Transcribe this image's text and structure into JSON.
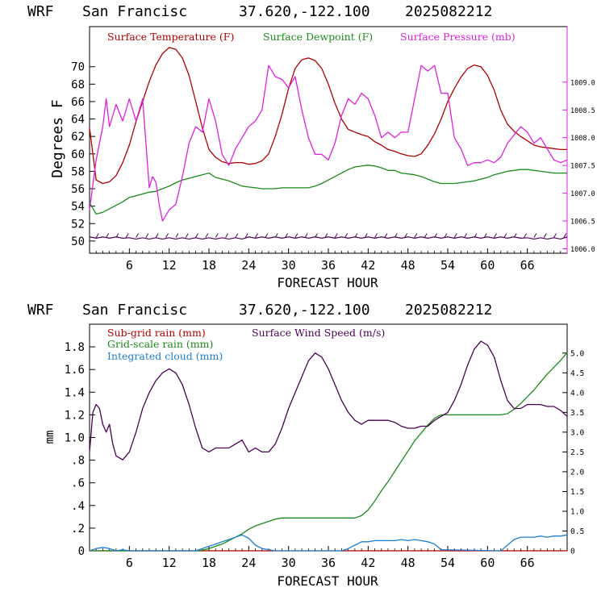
{
  "chart_data": [
    {
      "type": "line",
      "header": {
        "model": "WRF",
        "site": "San Francisc",
        "coords": "37.620,-122.100",
        "run": "2025082212"
      },
      "xlabel": "FORECAST HOUR",
      "ylabel": "Degrees F",
      "xlim": [
        0,
        72
      ],
      "xticks": [
        "6",
        "12",
        "18",
        "24",
        "30",
        "36",
        "42",
        "48",
        "54",
        "60",
        "66"
      ],
      "xtick_values": [
        6,
        12,
        18,
        24,
        30,
        36,
        42,
        48,
        54,
        60,
        66
      ],
      "ylim": [
        48.6,
        74.6
      ],
      "yticks": [
        "50",
        "52",
        "54",
        "56",
        "58",
        "60",
        "62",
        "64",
        "66",
        "68",
        "70"
      ],
      "ytick_values": [
        50,
        52,
        54,
        56,
        58,
        60,
        62,
        64,
        66,
        68,
        70
      ],
      "y2lim": [
        1005.92,
        1010.0
      ],
      "y2ticks": [
        "1006.0",
        "1006.5",
        "1007.0",
        "1007.5",
        "1008.0",
        "1008.5",
        "1009.0"
      ],
      "y2tick_values": [
        1006.0,
        1006.5,
        1007.0,
        1007.5,
        1008.0,
        1008.5,
        1009.0
      ],
      "series": [
        {
          "name": "Surface Temperature (F)",
          "color": "#b00000",
          "axis": "left",
          "x": [
            0,
            1,
            2,
            3,
            4,
            5,
            6,
            7,
            8,
            9,
            10,
            11,
            12,
            13,
            14,
            15,
            16,
            17,
            18,
            19,
            20,
            21,
            22,
            23,
            24,
            25,
            26,
            27,
            28,
            29,
            30,
            31,
            32,
            33,
            34,
            35,
            36,
            37,
            38,
            39,
            40,
            41,
            42,
            43,
            44,
            45,
            46,
            47,
            48,
            49,
            50,
            51,
            52,
            53,
            54,
            55,
            56,
            57,
            58,
            59,
            60,
            61,
            62,
            63,
            64,
            65,
            66,
            67,
            68,
            69,
            70,
            71,
            72
          ],
          "values": [
            63,
            57,
            56.6,
            56.8,
            57.5,
            59,
            61,
            63.7,
            66,
            68.3,
            70.2,
            71.5,
            72.2,
            72,
            71,
            69,
            66,
            63,
            60.5,
            59.6,
            59.1,
            58.9,
            59,
            59,
            58.8,
            58.9,
            59.2,
            60,
            62,
            64.5,
            67.5,
            69.8,
            70.8,
            71,
            70.7,
            69.8,
            68,
            65.8,
            64,
            62.8,
            62.5,
            62.2,
            62,
            61.4,
            61,
            60.5,
            60.3,
            60,
            59.8,
            59.7,
            60,
            61,
            62.3,
            64,
            66,
            67.5,
            68.8,
            69.8,
            70.2,
            70,
            69,
            67.3,
            65,
            63.4,
            62.6,
            62,
            61.5,
            61,
            60.8,
            60.7,
            60.6,
            60.5,
            60.5
          ]
        },
        {
          "name": "Surface Dewpoint (F)",
          "color": "#1a8a1a",
          "axis": "left",
          "x": [
            0,
            1,
            2,
            3,
            4,
            5,
            6,
            7,
            8,
            9,
            10,
            11,
            12,
            13,
            14,
            15,
            16,
            17,
            18,
            19,
            20,
            21,
            22,
            23,
            24,
            25,
            26,
            27,
            28,
            29,
            30,
            31,
            32,
            33,
            34,
            35,
            36,
            37,
            38,
            39,
            40,
            41,
            42,
            43,
            44,
            45,
            46,
            47,
            48,
            49,
            50,
            51,
            52,
            53,
            54,
            55,
            56,
            57,
            58,
            59,
            60,
            61,
            62,
            63,
            64,
            65,
            66,
            67,
            68,
            69,
            70,
            71,
            72
          ],
          "values": [
            54.4,
            53.1,
            53.3,
            53.7,
            54.1,
            54.5,
            55,
            55.2,
            55.4,
            55.6,
            55.7,
            56,
            56.3,
            56.7,
            57,
            57.2,
            57.4,
            57.6,
            57.8,
            57.3,
            57.1,
            56.9,
            56.6,
            56.3,
            56.2,
            56.1,
            56,
            56,
            56,
            56.1,
            56.1,
            56.1,
            56.1,
            56.1,
            56.3,
            56.6,
            57,
            57.4,
            57.8,
            58.2,
            58.5,
            58.6,
            58.7,
            58.6,
            58.4,
            58.1,
            58.1,
            57.8,
            57.7,
            57.6,
            57.4,
            57.1,
            56.8,
            56.6,
            56.6,
            56.6,
            56.7,
            56.8,
            56.9,
            57.1,
            57.3,
            57.6,
            57.8,
            58,
            58.1,
            58.2,
            58.2,
            58.1,
            58,
            57.9,
            57.8,
            57.8,
            57.8
          ]
        },
        {
          "name": "Surface Pressure (mb)",
          "color": "#e020e0",
          "axis": "right",
          "x": [
            0,
            1,
            2,
            2.5,
            3,
            4,
            5,
            6,
            7,
            8,
            8.5,
            9,
            9.5,
            10,
            10.5,
            11,
            12,
            13,
            14,
            15,
            16,
            17,
            18,
            19,
            20,
            21,
            22,
            23,
            24,
            25,
            26,
            27,
            28,
            29,
            30,
            31,
            32,
            33,
            34,
            35,
            36,
            37,
            38,
            39,
            40,
            41,
            42,
            43,
            44,
            45,
            46,
            47,
            48,
            49,
            50,
            51,
            52,
            53,
            54,
            55,
            56,
            57,
            58,
            59,
            60,
            61,
            62,
            63,
            64,
            65,
            66,
            67,
            68,
            69,
            70,
            71,
            72
          ],
          "values": [
            1006.7,
            1007.6,
            1008.2,
            1008.7,
            1008.2,
            1008.6,
            1008.3,
            1008.7,
            1008.3,
            1008.7,
            1007.9,
            1007.1,
            1007.3,
            1007.2,
            1006.8,
            1006.5,
            1006.7,
            1006.8,
            1007.3,
            1007.9,
            1008.2,
            1008.1,
            1008.7,
            1008.3,
            1007.7,
            1007.5,
            1007.8,
            1008.0,
            1008.2,
            1008.3,
            1008.5,
            1009.3,
            1009.1,
            1009.05,
            1008.9,
            1009.1,
            1008.5,
            1008.0,
            1007.7,
            1007.7,
            1007.6,
            1007.9,
            1008.4,
            1008.7,
            1008.6,
            1008.8,
            1008.7,
            1008.4,
            1008.0,
            1008.1,
            1008.0,
            1008.1,
            1008.1,
            1008.7,
            1009.3,
            1009.2,
            1009.3,
            1008.8,
            1008.8,
            1008.0,
            1007.8,
            1007.5,
            1007.55,
            1007.55,
            1007.6,
            1007.55,
            1007.65,
            1007.9,
            1008.05,
            1008.2,
            1008.1,
            1007.9,
            1008.0,
            1007.8,
            1007.6,
            1007.55,
            1007.6
          ]
        },
        {
          "name": "",
          "color": "#4b0055",
          "axis": "left",
          "marker": "wind-barb",
          "x": [
            0,
            6,
            12,
            18,
            24,
            30,
            36,
            42,
            48,
            54,
            60,
            66,
            72
          ],
          "values": [
            50.4,
            50.3,
            50.3,
            50.3,
            50.4,
            50.4,
            50.4,
            50.4,
            50.4,
            50.4,
            50.4,
            50.3,
            50.4
          ]
        }
      ]
    },
    {
      "type": "line",
      "header": {
        "model": "WRF",
        "site": "San Francisc",
        "coords": "37.620,-122.100",
        "run": "2025082212"
      },
      "xlabel": "FORECAST HOUR",
      "ylabel": "mm",
      "xlim": [
        0,
        72
      ],
      "xticks": [
        "6",
        "12",
        "18",
        "24",
        "30",
        "36",
        "42",
        "48",
        "54",
        "60",
        "66"
      ],
      "xtick_values": [
        6,
        12,
        18,
        24,
        30,
        36,
        42,
        48,
        54,
        60,
        66
      ],
      "ylim": [
        0,
        2.0
      ],
      "yticks": [
        "0",
        ".2",
        ".4",
        ".6",
        ".8",
        "1.0",
        "1.2",
        "1.4",
        "1.6",
        "1.8"
      ],
      "ytick_values": [
        0,
        0.2,
        0.4,
        0.6,
        0.8,
        1.0,
        1.2,
        1.4,
        1.6,
        1.8
      ],
      "y2lim": [
        0,
        5.73
      ],
      "y2ticks": [
        "0",
        "0.5",
        "1.0",
        "1.5",
        "2.0",
        "2.5",
        "3.0",
        "3.5",
        "4.0",
        "4.5",
        "5.0"
      ],
      "y2tick_values": [
        0,
        0.5,
        1.0,
        1.5,
        2.0,
        2.5,
        3.0,
        3.5,
        4.0,
        4.5,
        5.0
      ],
      "series": [
        {
          "name": "Sub-grid rain (mm)",
          "color": "#b00000",
          "axis": "left",
          "x": [
            0,
            72
          ],
          "values": [
            0,
            0
          ]
        },
        {
          "name": "Grid-scale rain (mm)",
          "color": "#1a8a1a",
          "axis": "left",
          "x": [
            0,
            16,
            17,
            18,
            19,
            20,
            21,
            22,
            23,
            24,
            25,
            26,
            27,
            28,
            29,
            30,
            32,
            34,
            36,
            38,
            40,
            41,
            42,
            43,
            44,
            45,
            46,
            47,
            48,
            49,
            50,
            51,
            52,
            53,
            54,
            56,
            58,
            60,
            62,
            63,
            64,
            65,
            66,
            67,
            68,
            69,
            70,
            71,
            72
          ],
          "values": [
            0,
            0,
            0.005,
            0.02,
            0.04,
            0.06,
            0.09,
            0.12,
            0.15,
            0.19,
            0.22,
            0.24,
            0.26,
            0.28,
            0.29,
            0.29,
            0.29,
            0.29,
            0.29,
            0.29,
            0.29,
            0.31,
            0.36,
            0.44,
            0.53,
            0.61,
            0.7,
            0.79,
            0.88,
            0.97,
            1.04,
            1.11,
            1.17,
            1.2,
            1.2,
            1.2,
            1.2,
            1.2,
            1.2,
            1.21,
            1.25,
            1.3,
            1.36,
            1.42,
            1.49,
            1.56,
            1.62,
            1.68,
            1.75
          ]
        },
        {
          "name": "Integrated cloud (mm)",
          "color": "#1f7fd0",
          "axis": "left",
          "x": [
            0,
            1,
            2,
            3,
            4,
            5,
            6,
            7,
            16,
            17,
            18,
            19,
            20,
            21,
            22,
            23,
            24,
            25,
            26,
            27,
            28,
            38,
            39,
            40,
            41,
            42,
            43,
            44,
            45,
            46,
            47,
            48,
            49,
            50,
            51,
            52,
            53,
            62,
            63,
            64,
            65,
            66,
            67,
            68,
            69,
            70,
            71,
            72
          ],
          "values": [
            0,
            0.02,
            0.03,
            0.02,
            0,
            0.01,
            0,
            0,
            0,
            0.02,
            0.04,
            0.06,
            0.08,
            0.1,
            0.12,
            0.14,
            0.11,
            0.05,
            0.02,
            0.01,
            0,
            0,
            0.02,
            0.05,
            0.08,
            0.08,
            0.09,
            0.09,
            0.09,
            0.09,
            0.1,
            0.09,
            0.1,
            0.09,
            0.08,
            0.06,
            0.01,
            0,
            0.05,
            0.1,
            0.12,
            0.12,
            0.12,
            0.13,
            0.12,
            0.13,
            0.13,
            0.14
          ]
        },
        {
          "name": "Surface Wind Speed (m/s)",
          "color": "#4b0055",
          "axis": "right",
          "x": [
            0,
            0.5,
            1,
            1.5,
            2,
            2.5,
            3,
            3.5,
            4,
            5,
            6,
            7,
            8,
            9,
            10,
            11,
            12,
            13,
            14,
            15,
            16,
            17,
            18,
            19,
            20,
            21,
            22,
            23,
            24,
            25,
            26,
            27,
            28,
            29,
            30,
            31,
            32,
            33,
            34,
            35,
            36,
            37,
            38,
            39,
            40,
            41,
            42,
            43,
            44,
            45,
            46,
            47,
            48,
            49,
            50,
            51,
            52,
            53,
            54,
            55,
            56,
            57,
            58,
            59,
            60,
            61,
            62,
            63,
            64,
            65,
            66,
            67,
            68,
            69,
            70,
            71,
            72
          ],
          "values": [
            2.5,
            3.5,
            3.7,
            3.6,
            3.2,
            3.0,
            3.2,
            2.7,
            2.4,
            2.3,
            2.5,
            3.0,
            3.6,
            4.0,
            4.3,
            4.5,
            4.6,
            4.5,
            4.2,
            3.7,
            3.1,
            2.6,
            2.5,
            2.6,
            2.6,
            2.6,
            2.7,
            2.8,
            2.5,
            2.6,
            2.5,
            2.5,
            2.7,
            3.1,
            3.6,
            4.0,
            4.4,
            4.8,
            5.0,
            4.9,
            4.6,
            4.2,
            3.8,
            3.5,
            3.3,
            3.2,
            3.3,
            3.3,
            3.3,
            3.3,
            3.25,
            3.15,
            3.1,
            3.1,
            3.15,
            3.15,
            3.3,
            3.4,
            3.5,
            3.8,
            4.2,
            4.7,
            5.1,
            5.3,
            5.2,
            4.9,
            4.3,
            3.8,
            3.6,
            3.6,
            3.7,
            3.7,
            3.7,
            3.65,
            3.65,
            3.55,
            3.4
          ]
        }
      ]
    }
  ]
}
